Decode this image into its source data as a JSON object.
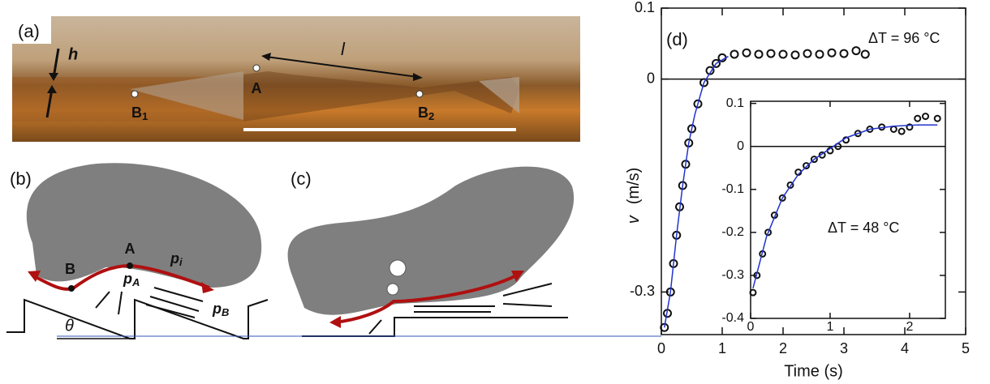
{
  "panel_a": {
    "label": "(a)",
    "h": "h",
    "l": "l",
    "A": "A",
    "B1": {
      "letter": "B",
      "sub": "1"
    },
    "B2": {
      "letter": "B",
      "sub": "2"
    }
  },
  "panel_b": {
    "label": "(b)",
    "A": "A",
    "B": "B",
    "p_i": {
      "letter": "p",
      "sub": "i"
    },
    "p_A": {
      "letter": "p",
      "sub": "A"
    },
    "p_B": {
      "letter": "p",
      "sub": "B"
    },
    "theta": "θ"
  },
  "panel_c": {
    "label": "(c)"
  },
  "chart_data": [
    {
      "type": "scatter",
      "label": "(d)",
      "annotation": "ΔT = 96 °C",
      "xlabel": "Time (s)",
      "ylabel": {
        "symbol": "v",
        "unit": "(m/s)"
      },
      "xlim": [
        0,
        5
      ],
      "xticks": [
        0,
        1,
        2,
        3,
        4,
        5
      ],
      "ylim": [
        -0.36,
        0.1
      ],
      "yticks": [
        -0.3,
        0,
        0.1
      ],
      "zero_line": true,
      "series": [
        {
          "marker": "circle",
          "color": "#111111",
          "x": [
            0.05,
            0.1,
            0.15,
            0.2,
            0.25,
            0.3,
            0.35,
            0.4,
            0.45,
            0.5,
            0.6,
            0.7,
            0.8,
            0.9,
            1.0,
            1.2,
            1.4,
            1.6,
            1.8,
            2.0,
            2.2,
            2.4,
            2.6,
            2.8,
            3.0,
            3.2,
            3.35
          ],
          "values": [
            -0.35,
            -0.33,
            -0.3,
            -0.26,
            -0.22,
            -0.18,
            -0.15,
            -0.12,
            -0.09,
            -0.07,
            -0.035,
            -0.005,
            0.012,
            0.022,
            0.03,
            0.035,
            0.037,
            0.035,
            0.036,
            0.035,
            0.034,
            0.036,
            0.035,
            0.037,
            0.036,
            0.04,
            0.035
          ]
        },
        {
          "marker": "line",
          "color": "#2233cc",
          "x": [
            0.05,
            0.15,
            0.25,
            0.35,
            0.45,
            0.55,
            0.7,
            0.9,
            1.1
          ],
          "values": [
            -0.35,
            -0.3,
            -0.22,
            -0.15,
            -0.09,
            -0.05,
            -0.005,
            0.022,
            0.032
          ]
        }
      ]
    },
    {
      "type": "scatter",
      "annotation": "ΔT = 48 °C",
      "inset": true,
      "xlim": [
        0,
        2.45
      ],
      "xticks": [
        0,
        1,
        2
      ],
      "ylim": [
        -0.4,
        0.105
      ],
      "yticks": [
        -0.4,
        -0.3,
        -0.2,
        -0.1,
        0,
        0.1
      ],
      "zero_line": true,
      "series": [
        {
          "marker": "circle",
          "color": "#111111",
          "x": [
            0.03,
            0.08,
            0.15,
            0.22,
            0.3,
            0.4,
            0.5,
            0.6,
            0.7,
            0.8,
            0.9,
            1.0,
            1.1,
            1.2,
            1.35,
            1.5,
            1.65,
            1.8,
            1.9,
            2.0,
            2.1,
            2.2,
            2.35
          ],
          "values": [
            -0.34,
            -0.3,
            -0.25,
            -0.2,
            -0.16,
            -0.12,
            -0.09,
            -0.06,
            -0.045,
            -0.03,
            -0.02,
            -0.01,
            0.0,
            0.015,
            0.03,
            0.04,
            0.045,
            0.04,
            0.035,
            0.045,
            0.065,
            0.07,
            0.065
          ]
        },
        {
          "marker": "line",
          "color": "#2233cc",
          "x": [
            0.03,
            0.2,
            0.4,
            0.6,
            0.8,
            1.0,
            1.2,
            1.5,
            1.8,
            2.1,
            2.35
          ],
          "values": [
            -0.33,
            -0.21,
            -0.12,
            -0.065,
            -0.03,
            -0.005,
            0.02,
            0.04,
            0.047,
            0.05,
            0.05
          ]
        }
      ]
    }
  ]
}
